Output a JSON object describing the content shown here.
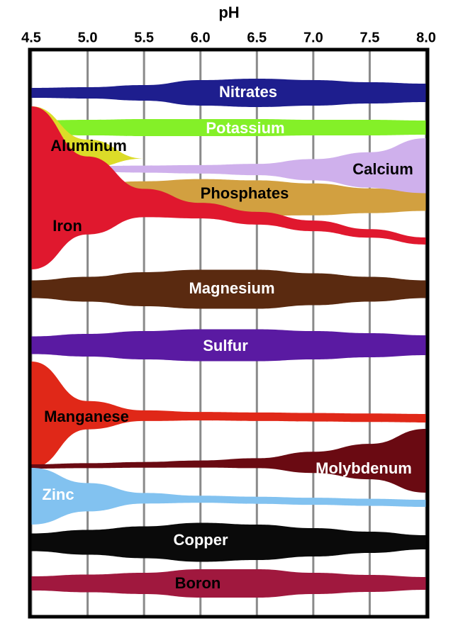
{
  "chart_data": {
    "type": "band",
    "xlabel": "pH",
    "x": [
      4.5,
      5,
      5.5,
      6,
      6.5,
      7,
      7.5,
      8
    ],
    "xlim": [
      4.5,
      8
    ],
    "xticks": [
      4.5,
      {
        "value": 5,
        "label": "5.0"
      },
      5.5,
      {
        "value": 6,
        "label": "6.0"
      },
      6.5,
      {
        "value": 7,
        "label": "7.0"
      },
      7.5,
      {
        "value": 8,
        "label": "8.0"
      }
    ],
    "grid": true,
    "series": [
      {
        "name": "Nitrates",
        "color": "#1e1e8e",
        "values": [
          14,
          16,
          22,
          36,
          40,
          36,
          30,
          26
        ]
      },
      {
        "name": "Potassium",
        "color": "#84f028",
        "values": [
          20,
          22,
          24,
          24,
          24,
          22,
          22,
          20
        ]
      },
      {
        "name": "Calcium",
        "color": "#cfb0ec",
        "values": [
          null,
          8,
          10,
          12,
          16,
          30,
          50,
          90
        ]
      },
      {
        "name": "Phosphates",
        "color": "#d2a040",
        "values": [
          null,
          30,
          40,
          50,
          50,
          45,
          35,
          25
        ]
      },
      {
        "name": "Aluminum",
        "color": "#dcdc28",
        "values": [
          120,
          40,
          0,
          null,
          null,
          null,
          null,
          null
        ]
      },
      {
        "name": "Iron",
        "color": "#e0182e",
        "values": [
          230,
          110,
          40,
          22,
          18,
          15,
          12,
          10
        ]
      },
      {
        "name": "Magnesium",
        "color": "#5a2a10",
        "values": [
          25,
          35,
          48,
          55,
          55,
          45,
          35,
          25
        ]
      },
      {
        "name": "Sulfur",
        "color": "#5a1aa2",
        "values": [
          25,
          32,
          40,
          45,
          45,
          40,
          34,
          28
        ]
      },
      {
        "name": "Manganese",
        "color": "#e02818",
        "values": [
          150,
          40,
          15,
          12,
          12,
          12,
          12,
          12
        ]
      },
      {
        "name": "Molybdenum",
        "color": "#6a0a12",
        "values": [
          6,
          7,
          8,
          10,
          14,
          30,
          50,
          90
        ]
      },
      {
        "name": "Zinc",
        "color": "#82c2f0",
        "values": [
          80,
          40,
          15,
          10,
          10,
          10,
          10,
          10
        ]
      },
      {
        "name": "Copper",
        "color": "#0a0a0a",
        "values": [
          25,
          35,
          45,
          55,
          50,
          40,
          30,
          20
        ]
      },
      {
        "name": "Boron",
        "color": "#a0183e",
        "values": [
          20,
          25,
          30,
          40,
          40,
          30,
          24,
          18
        ]
      }
    ]
  }
}
